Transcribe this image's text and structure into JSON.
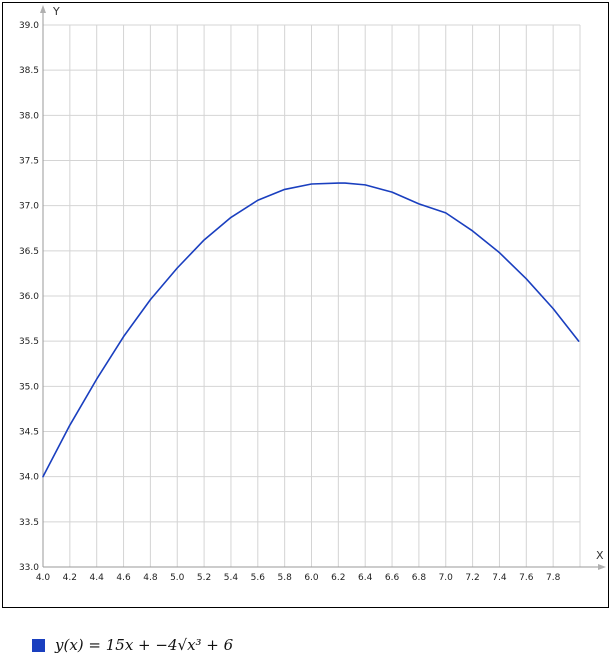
{
  "chart_data": {
    "type": "line",
    "title": "",
    "xlabel": "X",
    "ylabel": "Y",
    "xlim": [
      4.0,
      8.0
    ],
    "ylim": [
      33.0,
      39.0
    ],
    "x_ticks": [
      "4.0",
      "4.2",
      "4.4",
      "4.6",
      "4.8",
      "5.0",
      "5.2",
      "5.4",
      "5.6",
      "5.8",
      "6.0",
      "6.2",
      "6.4",
      "6.6",
      "6.8",
      "7.0",
      "7.2",
      "7.4",
      "7.6",
      "7.8"
    ],
    "y_ticks": [
      "33.0",
      "33.5",
      "34.0",
      "34.5",
      "35.0",
      "35.5",
      "36.0",
      "36.5",
      "37.0",
      "37.5",
      "38.0",
      "38.5",
      "39.0"
    ],
    "grid": true,
    "legend_position": "bottom-left",
    "series": [
      {
        "name": "y(x) = 15x + −4√x³ + 6",
        "color": "#1a3fbf",
        "x": [
          4.0,
          4.2,
          4.4,
          4.6,
          4.8,
          5.0,
          5.2,
          5.4,
          5.6,
          5.8,
          6.0,
          6.2,
          6.25,
          6.4,
          6.6,
          6.8,
          7.0,
          7.2,
          7.4,
          7.6,
          7.8,
          7.99
        ],
        "y": [
          34.0,
          34.57,
          35.08,
          35.55,
          35.96,
          36.31,
          36.62,
          36.87,
          37.06,
          37.18,
          37.24,
          37.25,
          37.25,
          37.23,
          37.15,
          37.02,
          36.92,
          36.72,
          36.48,
          36.19,
          35.86,
          35.5
        ]
      }
    ]
  },
  "legend": {
    "formula": "y(x) = 15x + −4√x³ + 6"
  }
}
